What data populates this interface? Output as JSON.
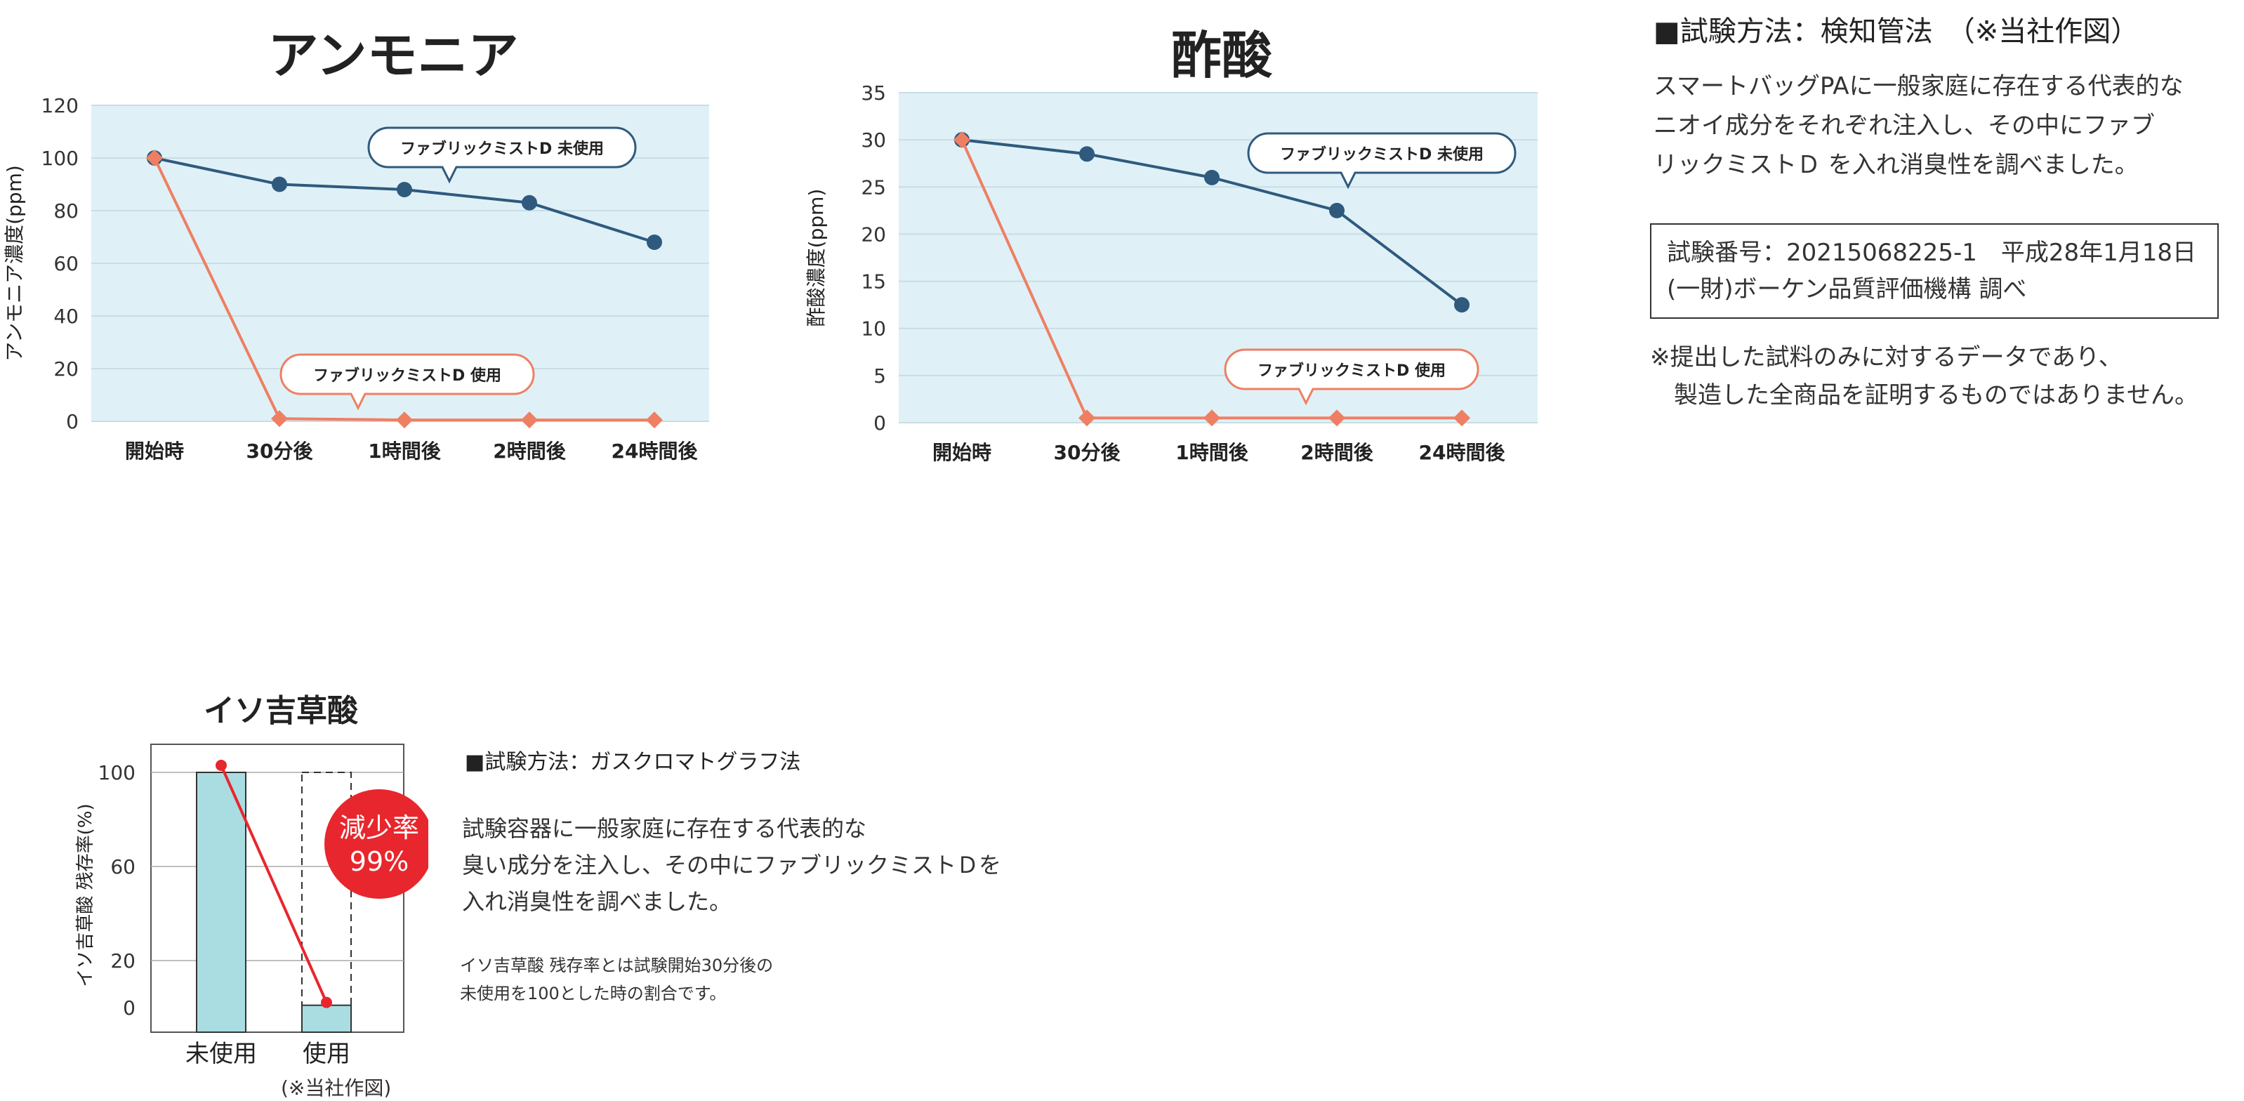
{
  "chart_data": [
    {
      "type": "line",
      "title": "アンモニア",
      "ylabel": "アンモニア濃度(ppm)",
      "xlabel": "",
      "categories": [
        "開始時",
        "30分後",
        "1時間後",
        "2時間後",
        "24時間後"
      ],
      "ylim": [
        0,
        120
      ],
      "yticks": [
        0,
        20,
        40,
        60,
        80,
        100,
        120
      ],
      "grid": true,
      "series": [
        {
          "name": "ファブリックミストD 未使用",
          "values": [
            100,
            90,
            88,
            83,
            68
          ],
          "color": "#2f5a7e",
          "marker": "circle"
        },
        {
          "name": "ファブリックミストD 使用",
          "values": [
            100,
            1,
            0.5,
            0.5,
            0.5
          ],
          "color": "#ef7f63",
          "marker": "diamond"
        }
      ]
    },
    {
      "type": "line",
      "title": "酢酸",
      "ylabel": "酢酸濃度(ppm)",
      "xlabel": "",
      "categories": [
        "開始時",
        "30分後",
        "1時間後",
        "2時間後",
        "24時間後"
      ],
      "ylim": [
        0,
        35
      ],
      "yticks": [
        0,
        5,
        10,
        15,
        20,
        25,
        30,
        35
      ],
      "grid": true,
      "series": [
        {
          "name": "ファブリックミストD 未使用",
          "values": [
            30,
            28.5,
            26,
            22.5,
            12.5
          ],
          "color": "#2f5a7e",
          "marker": "circle"
        },
        {
          "name": "ファブリックミストD 使用",
          "values": [
            30,
            0.5,
            0.5,
            0.5,
            0.5
          ],
          "color": "#ef7f63",
          "marker": "diamond"
        }
      ]
    },
    {
      "type": "bar",
      "title": "イソ吉草酸",
      "ylabel": "イソ吉草酸 残存率(%)",
      "xlabel": "",
      "categories": [
        "未使用",
        "使用"
      ],
      "values": [
        100,
        1
      ],
      "ylim": [
        0,
        100
      ],
      "yticks": [
        0,
        20,
        60,
        100
      ],
      "bar_color": "#a9dde2",
      "badge": {
        "line1": "減少率",
        "line2": "99%"
      },
      "credit": "(※当社作図)"
    }
  ],
  "detector": {
    "method_title": "■試験方法：検知管法　（※当社作図）",
    "description": "スマートバッグPAに一般家庭に存在する代表的な\nニオイ成分をそれぞれ注入し、その中にファブ\nリックミストＤ を入れ消臭性を調べました。",
    "test_box": "試験番号：20215068225-1　平成28年1月18日\n(一財)ボーケン品質評価機構 調べ",
    "disclaimer": "※提出した試料のみに対するデータであり、\n　製造した全商品を証明するものではありません。"
  },
  "gc": {
    "method_title": "■試験方法：ガスクロマトグラフ法",
    "description": "試験容器に一般家庭に存在する代表的な\n臭い成分を注入し、その中にファブリックミストＤを\n入れ消臭性を調べました。",
    "note": "イソ吉草酸 残存率とは試験開始30分後の\n未使用を100とした時の割合です。"
  },
  "colors": {
    "plot_bg": "#dff1f7",
    "grid": "#c8dde4",
    "unused": "#2f5a7e",
    "used": "#ef7f63",
    "badge": "#e8262d",
    "bar": "#a9dde2"
  }
}
